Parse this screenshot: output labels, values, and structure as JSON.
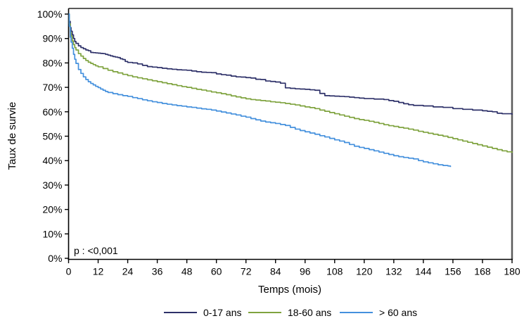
{
  "colors": {
    "background": "#ffffff",
    "axis": "#000000",
    "frame_border": "#5a5a5a",
    "text": "#000000"
  },
  "chart_data": {
    "type": "line",
    "step": true,
    "title": "",
    "xlabel": "Temps (mois)",
    "ylabel": "Taux de survie",
    "annotation": "p : <0,001",
    "xlim": [
      0,
      180
    ],
    "ylim": [
      0,
      100
    ],
    "grid": false,
    "legend_position": "bottom",
    "x_ticks": [
      0,
      12,
      24,
      36,
      48,
      60,
      72,
      84,
      96,
      108,
      120,
      132,
      144,
      156,
      168,
      180
    ],
    "x_tick_labels": [
      "0",
      "12",
      "24",
      "36",
      "48",
      "60",
      "72",
      "84",
      "96",
      "108",
      "120",
      "132",
      "144",
      "156",
      "168",
      "180"
    ],
    "y_ticks": [
      0,
      10,
      20,
      30,
      40,
      50,
      60,
      70,
      80,
      90,
      100
    ],
    "y_tick_labels": [
      "0%",
      "10%",
      "20%",
      "30%",
      "40%",
      "50%",
      "60%",
      "70%",
      "80%",
      "90%",
      "100%"
    ],
    "series": [
      {
        "name": "0-17 ans",
        "color": "#2e3169",
        "points": [
          [
            0,
            100
          ],
          [
            0.3,
            97
          ],
          [
            0.7,
            94.5
          ],
          [
            1,
            93
          ],
          [
            1.5,
            91.5
          ],
          [
            2,
            90
          ],
          [
            2.5,
            88.8
          ],
          [
            3,
            88
          ],
          [
            4,
            87
          ],
          [
            5,
            86.3
          ],
          [
            6,
            85.8
          ],
          [
            7,
            85.3
          ],
          [
            8,
            85
          ],
          [
            9,
            84.3
          ],
          [
            10,
            84.2
          ],
          [
            11,
            84.1
          ],
          [
            12,
            84
          ],
          [
            13,
            83.9
          ],
          [
            14,
            83.8
          ],
          [
            15,
            83.5
          ],
          [
            16,
            83.2
          ],
          [
            17,
            82.9
          ],
          [
            18,
            82.6
          ],
          [
            19,
            82.4
          ],
          [
            20,
            82.2
          ],
          [
            21,
            81.7
          ],
          [
            22,
            81.4
          ],
          [
            23,
            80.6
          ],
          [
            24,
            80.2
          ],
          [
            26,
            80
          ],
          [
            28,
            79.6
          ],
          [
            30,
            79
          ],
          [
            32,
            78.5
          ],
          [
            34,
            78.3
          ],
          [
            36,
            78.1
          ],
          [
            38,
            77.8
          ],
          [
            40,
            77.6
          ],
          [
            42,
            77.4
          ],
          [
            44,
            77.2
          ],
          [
            46,
            77.1
          ],
          [
            48,
            77
          ],
          [
            50,
            76.7
          ],
          [
            52,
            76.4
          ],
          [
            54,
            76.2
          ],
          [
            56,
            76.1
          ],
          [
            58,
            76
          ],
          [
            60,
            75.5
          ],
          [
            62,
            75.2
          ],
          [
            64,
            75
          ],
          [
            66,
            74.6
          ],
          [
            68,
            74.3
          ],
          [
            70,
            74.2
          ],
          [
            72,
            74
          ],
          [
            74,
            73.8
          ],
          [
            76,
            73.3
          ],
          [
            78,
            73.2
          ],
          [
            80,
            72.6
          ],
          [
            82,
            72.4
          ],
          [
            84,
            72.2
          ],
          [
            86,
            71.7
          ],
          [
            88,
            69.8
          ],
          [
            90,
            69.6
          ],
          [
            92,
            69.4
          ],
          [
            94,
            69.3
          ],
          [
            96,
            69.2
          ],
          [
            98,
            69
          ],
          [
            100,
            68.8
          ],
          [
            102,
            67.5
          ],
          [
            104,
            66.6
          ],
          [
            106,
            66.5
          ],
          [
            108,
            66.4
          ],
          [
            110,
            66.3
          ],
          [
            112,
            66.2
          ],
          [
            114,
            66
          ],
          [
            116,
            65.8
          ],
          [
            118,
            65.6
          ],
          [
            120,
            65.4
          ],
          [
            124,
            65.2
          ],
          [
            128,
            65
          ],
          [
            130,
            64.6
          ],
          [
            132,
            64.3
          ],
          [
            134,
            63.8
          ],
          [
            136,
            63.3
          ],
          [
            138,
            62.9
          ],
          [
            140,
            62.6
          ],
          [
            144,
            62.4
          ],
          [
            148,
            62
          ],
          [
            152,
            61.8
          ],
          [
            156,
            61.3
          ],
          [
            160,
            61
          ],
          [
            164,
            60.7
          ],
          [
            168,
            60.4
          ],
          [
            170,
            60.2
          ],
          [
            172,
            60
          ],
          [
            174,
            59.4
          ],
          [
            176,
            59.2
          ],
          [
            180,
            58.8
          ]
        ]
      },
      {
        "name": "18-60 ans",
        "color": "#7fa33f",
        "points": [
          [
            0,
            100
          ],
          [
            0.3,
            96
          ],
          [
            0.7,
            92.5
          ],
          [
            1,
            91
          ],
          [
            1.5,
            89
          ],
          [
            2,
            87.5
          ],
          [
            2.5,
            86.3
          ],
          [
            3,
            85.3
          ],
          [
            4,
            83.8
          ],
          [
            5,
            82.8
          ],
          [
            6,
            81.8
          ],
          [
            7,
            81
          ],
          [
            8,
            80.3
          ],
          [
            9,
            79.8
          ],
          [
            10,
            79.3
          ],
          [
            11,
            78.8
          ],
          [
            12,
            78.4
          ],
          [
            14,
            77.7
          ],
          [
            16,
            77
          ],
          [
            18,
            76.4
          ],
          [
            20,
            75.9
          ],
          [
            22,
            75.3
          ],
          [
            24,
            74.8
          ],
          [
            26,
            74.3
          ],
          [
            28,
            73.9
          ],
          [
            30,
            73.5
          ],
          [
            32,
            73.1
          ],
          [
            34,
            72.7
          ],
          [
            36,
            72.3
          ],
          [
            38,
            71.9
          ],
          [
            40,
            71.5
          ],
          [
            42,
            71.1
          ],
          [
            44,
            70.7
          ],
          [
            46,
            70.3
          ],
          [
            48,
            70
          ],
          [
            50,
            69.6
          ],
          [
            52,
            69.2
          ],
          [
            54,
            68.9
          ],
          [
            56,
            68.5
          ],
          [
            58,
            68.1
          ],
          [
            60,
            67.8
          ],
          [
            62,
            67.4
          ],
          [
            64,
            67
          ],
          [
            66,
            66.5
          ],
          [
            68,
            66.1
          ],
          [
            70,
            65.7
          ],
          [
            72,
            65.3
          ],
          [
            74,
            65
          ],
          [
            76,
            64.8
          ],
          [
            78,
            64.6
          ],
          [
            80,
            64.4
          ],
          [
            82,
            64.1
          ],
          [
            84,
            63.9
          ],
          [
            86,
            63.7
          ],
          [
            88,
            63.4
          ],
          [
            90,
            63.1
          ],
          [
            92,
            62.8
          ],
          [
            94,
            62.4
          ],
          [
            96,
            62
          ],
          [
            98,
            61.7
          ],
          [
            100,
            61.3
          ],
          [
            102,
            60.7
          ],
          [
            104,
            60.2
          ],
          [
            106,
            59.7
          ],
          [
            108,
            59.2
          ],
          [
            110,
            58.7
          ],
          [
            112,
            58.2
          ],
          [
            114,
            57.7
          ],
          [
            116,
            57.2
          ],
          [
            118,
            56.8
          ],
          [
            120,
            56.5
          ],
          [
            122,
            56.1
          ],
          [
            124,
            55.7
          ],
          [
            126,
            55.2
          ],
          [
            128,
            54.7
          ],
          [
            130,
            54.3
          ],
          [
            132,
            54
          ],
          [
            134,
            53.6
          ],
          [
            136,
            53.3
          ],
          [
            138,
            52.9
          ],
          [
            140,
            52.5
          ],
          [
            142,
            52
          ],
          [
            144,
            51.6
          ],
          [
            146,
            51.2
          ],
          [
            148,
            50.8
          ],
          [
            150,
            50.4
          ],
          [
            152,
            50
          ],
          [
            154,
            49.5
          ],
          [
            156,
            49
          ],
          [
            158,
            48.5
          ],
          [
            160,
            48
          ],
          [
            162,
            47.5
          ],
          [
            164,
            47
          ],
          [
            166,
            46.5
          ],
          [
            168,
            46
          ],
          [
            170,
            45.5
          ],
          [
            172,
            45
          ],
          [
            174,
            44.5
          ],
          [
            176,
            44
          ],
          [
            178,
            43.6
          ],
          [
            180,
            43.2
          ]
        ]
      },
      {
        "name": "> 60 ans",
        "color": "#4490dd",
        "points": [
          [
            0,
            100
          ],
          [
            0.3,
            95
          ],
          [
            0.7,
            90.5
          ],
          [
            1,
            88.5
          ],
          [
            1.5,
            86
          ],
          [
            2,
            83.5
          ],
          [
            2.5,
            81.5
          ],
          [
            3,
            79.8
          ],
          [
            4,
            77.3
          ],
          [
            5,
            75.7
          ],
          [
            6,
            74.3
          ],
          [
            7,
            73.2
          ],
          [
            8,
            72.3
          ],
          [
            9,
            71.6
          ],
          [
            10,
            71
          ],
          [
            11,
            70.4
          ],
          [
            12,
            69.9
          ],
          [
            13,
            69.3
          ],
          [
            14,
            68.8
          ],
          [
            15,
            68.3
          ],
          [
            16,
            67.9
          ],
          [
            18,
            67.4
          ],
          [
            20,
            67
          ],
          [
            22,
            66.6
          ],
          [
            24,
            66.3
          ],
          [
            26,
            65.8
          ],
          [
            28,
            65.4
          ],
          [
            30,
            64.9
          ],
          [
            32,
            64.5
          ],
          [
            34,
            64.1
          ],
          [
            36,
            63.8
          ],
          [
            38,
            63.4
          ],
          [
            40,
            63.1
          ],
          [
            42,
            62.8
          ],
          [
            44,
            62.5
          ],
          [
            46,
            62.3
          ],
          [
            48,
            62
          ],
          [
            50,
            61.8
          ],
          [
            52,
            61.5
          ],
          [
            54,
            61.2
          ],
          [
            56,
            61
          ],
          [
            58,
            60.7
          ],
          [
            60,
            60.3
          ],
          [
            62,
            59.9
          ],
          [
            64,
            59.5
          ],
          [
            66,
            59.1
          ],
          [
            68,
            58.7
          ],
          [
            70,
            58.2
          ],
          [
            72,
            57.8
          ],
          [
            74,
            57.2
          ],
          [
            76,
            56.7
          ],
          [
            78,
            56.2
          ],
          [
            80,
            55.8
          ],
          [
            82,
            55.5
          ],
          [
            84,
            55.2
          ],
          [
            86,
            54.8
          ],
          [
            88,
            54.4
          ],
          [
            90,
            53.6
          ],
          [
            92,
            52.9
          ],
          [
            94,
            52.3
          ],
          [
            96,
            51.8
          ],
          [
            98,
            51.3
          ],
          [
            100,
            50.8
          ],
          [
            102,
            50.2
          ],
          [
            104,
            49.7
          ],
          [
            106,
            49.1
          ],
          [
            108,
            48.5
          ],
          [
            110,
            48
          ],
          [
            112,
            47.4
          ],
          [
            114,
            46.6
          ],
          [
            116,
            45.9
          ],
          [
            118,
            45.4
          ],
          [
            120,
            45
          ],
          [
            122,
            44.5
          ],
          [
            124,
            44
          ],
          [
            126,
            43.5
          ],
          [
            128,
            43
          ],
          [
            130,
            42.5
          ],
          [
            132,
            42
          ],
          [
            134,
            41.6
          ],
          [
            136,
            41.3
          ],
          [
            138,
            41
          ],
          [
            140,
            40.7
          ],
          [
            142,
            40
          ],
          [
            144,
            39.5
          ],
          [
            146,
            39.1
          ],
          [
            148,
            38.7
          ],
          [
            150,
            38.3
          ],
          [
            152,
            38
          ],
          [
            154,
            37.8
          ],
          [
            155,
            37.4
          ]
        ]
      }
    ]
  }
}
